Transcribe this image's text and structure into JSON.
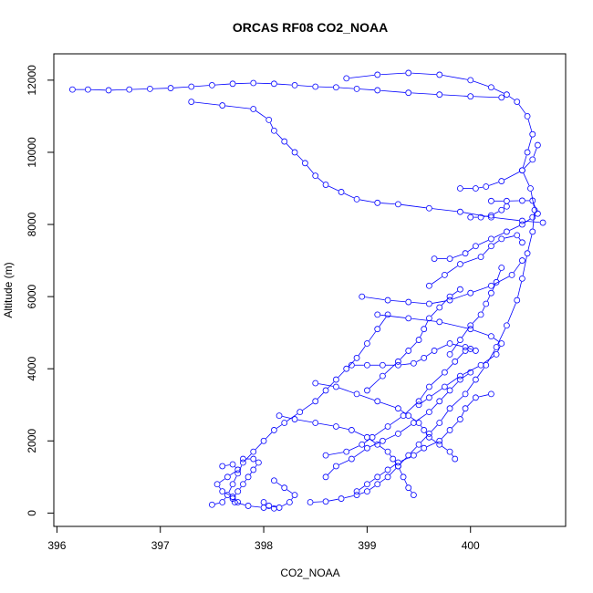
{
  "chart_data": {
    "type": "scatter",
    "title": "ORCAS RF08 CO2_NOAA",
    "xlabel": "CO2_NOAA",
    "ylabel": "Altitude (m)",
    "xlim": [
      395.97,
      400.92
    ],
    "ylim": [
      -370,
      12730
    ],
    "xticks": [
      396,
      397,
      398,
      399,
      400
    ],
    "yticks": [
      0,
      2000,
      4000,
      6000,
      8000,
      10000,
      12000
    ],
    "grid": false,
    "legend": "none",
    "marker": "open-circle",
    "connected": true,
    "color": "#0000ff",
    "series": [
      {
        "points": [
          [
            398.45,
            300
          ],
          [
            398.6,
            320
          ],
          [
            398.75,
            400
          ],
          [
            398.9,
            500
          ],
          [
            399.0,
            600
          ],
          [
            399.1,
            800
          ],
          [
            399.2,
            1000
          ],
          [
            399.3,
            1300
          ],
          [
            399.4,
            1600
          ],
          [
            399.5,
            1900
          ],
          [
            399.6,
            2200
          ],
          [
            399.7,
            2500
          ],
          [
            399.8,
            2900
          ],
          [
            399.95,
            3300
          ],
          [
            400.05,
            3700
          ],
          [
            400.15,
            4100
          ],
          [
            400.25,
            4600
          ],
          [
            400.35,
            5200
          ],
          [
            400.45,
            5900
          ],
          [
            400.5,
            6500
          ],
          [
            400.55,
            7200
          ],
          [
            400.6,
            7800
          ],
          [
            400.62,
            8400
          ],
          [
            400.58,
            9000
          ],
          [
            400.5,
            9500
          ],
          [
            400.55,
            10000
          ],
          [
            400.6,
            10500
          ],
          [
            400.55,
            11000
          ],
          [
            400.45,
            11400
          ],
          [
            400.35,
            11600
          ],
          [
            400.2,
            11800
          ],
          [
            400.0,
            12000
          ],
          [
            399.7,
            12150
          ],
          [
            399.4,
            12200
          ],
          [
            399.1,
            12150
          ],
          [
            398.8,
            12050
          ]
        ]
      },
      {
        "points": [
          [
            396.15,
            11740
          ],
          [
            396.3,
            11740
          ],
          [
            396.5,
            11720
          ],
          [
            396.7,
            11740
          ],
          [
            396.9,
            11760
          ],
          [
            397.1,
            11780
          ],
          [
            397.3,
            11820
          ],
          [
            397.5,
            11860
          ],
          [
            397.7,
            11900
          ],
          [
            397.9,
            11920
          ],
          [
            398.1,
            11900
          ],
          [
            398.3,
            11860
          ],
          [
            398.5,
            11820
          ],
          [
            398.7,
            11800
          ],
          [
            398.9,
            11760
          ],
          [
            399.1,
            11720
          ],
          [
            399.4,
            11650
          ],
          [
            399.7,
            11600
          ],
          [
            400.0,
            11550
          ],
          [
            400.3,
            11520
          ]
        ]
      },
      {
        "points": [
          [
            397.3,
            11400
          ],
          [
            397.6,
            11300
          ],
          [
            397.9,
            11200
          ],
          [
            398.05,
            10900
          ],
          [
            398.1,
            10600
          ],
          [
            398.2,
            10300
          ],
          [
            398.3,
            10000
          ],
          [
            398.4,
            9700
          ],
          [
            398.5,
            9350
          ],
          [
            398.6,
            9100
          ],
          [
            398.75,
            8900
          ],
          [
            398.9,
            8700
          ],
          [
            399.1,
            8600
          ],
          [
            399.3,
            8560
          ],
          [
            399.6,
            8450
          ],
          [
            399.9,
            8350
          ],
          [
            400.2,
            8200
          ],
          [
            400.5,
            8100
          ],
          [
            400.7,
            8050
          ]
        ]
      },
      {
        "points": [
          [
            399.9,
            9000
          ],
          [
            400.05,
            9000
          ],
          [
            400.15,
            9050
          ],
          [
            400.3,
            9200
          ],
          [
            400.5,
            9500
          ],
          [
            400.6,
            9800
          ],
          [
            400.65,
            10200
          ]
        ]
      },
      {
        "points": [
          [
            400.2,
            8650
          ],
          [
            400.35,
            8650
          ],
          [
            400.5,
            8660
          ],
          [
            400.6,
            8660
          ],
          [
            400.65,
            8300
          ]
        ]
      },
      {
        "points": [
          [
            400.0,
            8200
          ],
          [
            400.1,
            8200
          ],
          [
            400.2,
            8250
          ],
          [
            400.3,
            8400
          ],
          [
            400.35,
            8500
          ]
        ]
      },
      {
        "points": [
          [
            399.65,
            7050
          ],
          [
            399.8,
            7050
          ],
          [
            399.95,
            7200
          ],
          [
            400.05,
            7400
          ],
          [
            400.2,
            7600
          ],
          [
            400.35,
            7800
          ],
          [
            400.5,
            8000
          ],
          [
            400.6,
            8200
          ]
        ]
      },
      {
        "points": [
          [
            398.95,
            6000
          ],
          [
            399.2,
            5900
          ],
          [
            399.4,
            5850
          ],
          [
            399.6,
            5800
          ],
          [
            399.8,
            5900
          ],
          [
            400.0,
            6100
          ],
          [
            400.2,
            6300
          ],
          [
            400.4,
            6600
          ],
          [
            400.5,
            7000
          ]
        ]
      },
      {
        "points": [
          [
            399.1,
            5500
          ],
          [
            399.4,
            5400
          ],
          [
            399.7,
            5300
          ],
          [
            400.0,
            5100
          ],
          [
            400.2,
            4900
          ],
          [
            400.3,
            4700
          ],
          [
            400.25,
            4400
          ],
          [
            400.1,
            4100
          ],
          [
            399.9,
            3800
          ],
          [
            399.75,
            3500
          ],
          [
            399.6,
            3200
          ],
          [
            399.5,
            3000
          ]
        ]
      },
      {
        "points": [
          [
            398.85,
            4100
          ],
          [
            399.0,
            4100
          ],
          [
            399.15,
            4100
          ],
          [
            399.3,
            4100
          ],
          [
            399.45,
            4150
          ],
          [
            399.55,
            4300
          ],
          [
            399.65,
            4500
          ],
          [
            399.8,
            4700
          ],
          [
            399.95,
            4600
          ],
          [
            400.05,
            4500
          ]
        ]
      },
      {
        "points": [
          [
            398.5,
            3600
          ],
          [
            398.7,
            3500
          ],
          [
            398.9,
            3300
          ],
          [
            399.1,
            3100
          ],
          [
            399.3,
            2900
          ],
          [
            399.4,
            2700
          ],
          [
            399.5,
            2500
          ],
          [
            399.55,
            2300
          ],
          [
            399.6,
            2100
          ],
          [
            399.7,
            1900
          ],
          [
            399.8,
            1700
          ],
          [
            399.85,
            1500
          ]
        ]
      },
      {
        "points": [
          [
            398.15,
            2700
          ],
          [
            398.3,
            2600
          ],
          [
            398.5,
            2500
          ],
          [
            398.7,
            2400
          ],
          [
            398.85,
            2300
          ],
          [
            399.0,
            2100
          ],
          [
            399.1,
            1900
          ],
          [
            399.2,
            1700
          ],
          [
            399.25,
            1500
          ],
          [
            399.3,
            1300
          ],
          [
            399.35,
            1000
          ],
          [
            399.4,
            700
          ],
          [
            399.45,
            500
          ]
        ]
      },
      {
        "points": [
          [
            397.5,
            230
          ],
          [
            397.6,
            300
          ],
          [
            397.65,
            500
          ],
          [
            397.7,
            800
          ],
          [
            397.75,
            1100
          ],
          [
            397.8,
            1400
          ],
          [
            397.9,
            1700
          ],
          [
            398.0,
            2000
          ],
          [
            398.1,
            2300
          ],
          [
            398.2,
            2500
          ],
          [
            398.35,
            2800
          ],
          [
            398.5,
            3100
          ],
          [
            398.6,
            3400
          ],
          [
            398.7,
            3700
          ],
          [
            398.8,
            4000
          ],
          [
            398.9,
            4300
          ],
          [
            399.0,
            4700
          ],
          [
            399.1,
            5100
          ],
          [
            399.2,
            5500
          ]
        ]
      },
      {
        "points": [
          [
            397.8,
            1500
          ],
          [
            397.9,
            1500
          ],
          [
            397.95,
            1400
          ],
          [
            397.9,
            1200
          ],
          [
            397.85,
            1000
          ],
          [
            397.8,
            800
          ],
          [
            397.75,
            600
          ],
          [
            397.7,
            400
          ],
          [
            397.72,
            300
          ],
          [
            397.85,
            200
          ],
          [
            398.0,
            150
          ],
          [
            398.1,
            130
          ]
        ]
      },
      {
        "points": [
          [
            397.6,
            1300
          ],
          [
            397.7,
            1350
          ],
          [
            397.75,
            1200
          ],
          [
            397.65,
            1000
          ],
          [
            397.55,
            800
          ],
          [
            397.6,
            600
          ],
          [
            397.7,
            450
          ],
          [
            397.75,
            300
          ]
        ]
      },
      {
        "points": [
          [
            398.0,
            300
          ],
          [
            398.05,
            200
          ],
          [
            398.15,
            150
          ],
          [
            398.25,
            300
          ],
          [
            398.3,
            500
          ],
          [
            398.2,
            700
          ],
          [
            398.1,
            900
          ]
        ]
      },
      {
        "points": [
          [
            398.6,
            1600
          ],
          [
            398.8,
            1700
          ],
          [
            398.95,
            1900
          ],
          [
            399.05,
            2100
          ],
          [
            399.2,
            2400
          ],
          [
            399.35,
            2700
          ],
          [
            399.5,
            3100
          ],
          [
            399.6,
            3500
          ],
          [
            399.75,
            3900
          ],
          [
            399.85,
            4200
          ],
          [
            399.95,
            4500
          ],
          [
            400.0,
            4550
          ]
        ]
      },
      {
        "points": [
          [
            398.9,
            600
          ],
          [
            399.0,
            800
          ],
          [
            399.1,
            1000
          ],
          [
            399.2,
            1200
          ],
          [
            399.3,
            1400
          ],
          [
            399.45,
            1600
          ],
          [
            399.55,
            1800
          ],
          [
            399.7,
            2000
          ],
          [
            399.8,
            2300
          ],
          [
            399.9,
            2600
          ],
          [
            399.95,
            2900
          ],
          [
            400.05,
            3200
          ],
          [
            400.2,
            3300
          ]
        ]
      },
      {
        "points": [
          [
            399.6,
            6300
          ],
          [
            399.75,
            6600
          ],
          [
            399.9,
            6900
          ],
          [
            400.1,
            7100
          ],
          [
            400.2,
            7400
          ],
          [
            400.3,
            7600
          ],
          [
            400.45,
            7700
          ],
          [
            400.5,
            7500
          ]
        ]
      },
      {
        "points": [
          [
            399.8,
            4400
          ],
          [
            399.9,
            4800
          ],
          [
            400.0,
            5200
          ],
          [
            400.1,
            5500
          ],
          [
            400.15,
            5800
          ],
          [
            400.2,
            6100
          ],
          [
            400.25,
            6400
          ],
          [
            400.3,
            6800
          ]
        ]
      },
      {
        "points": [
          [
            398.6,
            1000
          ],
          [
            398.7,
            1300
          ],
          [
            398.85,
            1500
          ],
          [
            399.0,
            1800
          ],
          [
            399.15,
            2000
          ],
          [
            399.3,
            2200
          ],
          [
            399.45,
            2500
          ],
          [
            399.6,
            2800
          ],
          [
            399.7,
            3100
          ],
          [
            399.8,
            3400
          ],
          [
            399.9,
            3700
          ],
          [
            400.0,
            3900
          ]
        ]
      },
      {
        "points": [
          [
            399.0,
            3400
          ],
          [
            399.15,
            3800
          ],
          [
            399.3,
            4200
          ],
          [
            399.4,
            4500
          ],
          [
            399.5,
            4800
          ],
          [
            399.55,
            5100
          ],
          [
            399.6,
            5400
          ],
          [
            399.7,
            5700
          ],
          [
            399.8,
            6000
          ],
          [
            399.9,
            6200
          ]
        ]
      }
    ]
  }
}
